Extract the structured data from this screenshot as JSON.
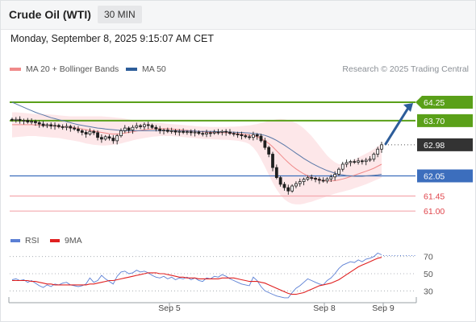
{
  "header": {
    "title": "Crude Oil (WTI)",
    "timeframe": "30 MIN"
  },
  "timestamp": "Monday, September 8, 2025 9:15:07 AM CET",
  "legend": {
    "items": [
      {
        "label": "MA 20 + Bollinger Bands",
        "color": "#f08a8a"
      },
      {
        "label": "MA 50",
        "color": "#2d5d9a"
      }
    ],
    "credit": "Research © 2025 Trading Central"
  },
  "rsi_legend": {
    "items": [
      {
        "label": "RSI",
        "color": "#5b7fd4"
      },
      {
        "label": "9MA",
        "color": "#e02020"
      }
    ]
  },
  "colors": {
    "green": "#5aa019",
    "blue": "#3c6ebd",
    "pink": "#f4a9ae",
    "dark": "#333333",
    "arrow": "#2d5d9a"
  },
  "chart_data": [
    {
      "type": "candlestick",
      "instrument": "Crude Oil (WTI)",
      "interval": "30 MIN",
      "ylim": [
        60.5,
        64.9
      ],
      "x_ticks": [
        "Sep 5",
        "Sep 8",
        "Sep 9"
      ],
      "levels": [
        {
          "value": 64.25,
          "label": "64.25",
          "style": "target",
          "color": "#5aa019"
        },
        {
          "value": 63.7,
          "label": "63.70",
          "style": "resistance",
          "color": "#5aa019"
        },
        {
          "value": 62.98,
          "label": "62.98",
          "style": "last",
          "color": "#333333"
        },
        {
          "value": 62.05,
          "label": "62.05",
          "style": "pivot",
          "color": "#3c6ebd"
        },
        {
          "value": 61.45,
          "label": "61.45",
          "style": "support",
          "color": "#f4a9ae"
        },
        {
          "value": 61.0,
          "label": "61.00",
          "style": "support",
          "color": "#f4a9ae"
        }
      ],
      "close": [
        63.72,
        63.74,
        63.7,
        63.71,
        63.66,
        63.68,
        63.64,
        63.6,
        63.55,
        63.58,
        63.54,
        63.56,
        63.52,
        63.5,
        63.53,
        63.48,
        63.45,
        63.4,
        63.35,
        63.3,
        63.38,
        63.34,
        63.2,
        63.15,
        63.22,
        63.18,
        63.1,
        63.25,
        63.4,
        63.48,
        63.42,
        63.5,
        63.55,
        63.52,
        63.58,
        63.56,
        63.5,
        63.45,
        63.4,
        63.42,
        63.38,
        63.4,
        63.36,
        63.38,
        63.35,
        63.37,
        63.34,
        63.36,
        63.32,
        63.3,
        63.34,
        63.33,
        63.36,
        63.35,
        63.38,
        63.36,
        63.32,
        63.3,
        63.28,
        63.25,
        63.22,
        63.2,
        63.28,
        63.24,
        63.1,
        62.9,
        62.7,
        62.3,
        62.0,
        61.8,
        61.7,
        61.6,
        61.75,
        61.82,
        61.88,
        61.95,
        62.0,
        61.98,
        61.95,
        61.92,
        61.9,
        61.96,
        62.02,
        62.1,
        62.25,
        62.4,
        62.45,
        62.48,
        62.46,
        62.5,
        62.48,
        62.52,
        62.55,
        62.7,
        62.85,
        62.98
      ],
      "open_shift": [
        0.02,
        -0.03,
        0.04,
        -0.01,
        0.05,
        -0.02,
        0.04,
        0.04,
        0.05,
        -0.03,
        0.04,
        -0.02,
        0.04,
        0.02,
        -0.03,
        0.05,
        0.03,
        0.05,
        0.05,
        0.05,
        -0.08,
        0.04,
        0.14,
        0.05,
        -0.07,
        0.04,
        0.08,
        -0.15,
        -0.15,
        -0.08,
        0.06,
        -0.08,
        -0.05,
        0.03,
        -0.06,
        0.02,
        0.06,
        0.05,
        0.05,
        -0.02,
        0.04,
        -0.02,
        0.04,
        -0.02,
        0.03,
        -0.02,
        0.03,
        -0.02,
        0.04,
        0.02,
        -0.04,
        0.01,
        -0.03,
        0.01,
        -0.03,
        0.02,
        0.04,
        0.02,
        0.02,
        0.03,
        0.03,
        0.02,
        -0.08,
        0.04,
        0.14,
        0.2,
        0.2,
        0.4,
        0.3,
        0.2,
        0.1,
        0.1,
        -0.15,
        -0.07,
        -0.06,
        -0.07,
        -0.05,
        0.02,
        0.03,
        0.03,
        0.02,
        -0.06,
        -0.06,
        -0.08,
        -0.15,
        -0.15,
        -0.05,
        -0.03,
        0.02,
        -0.04,
        0.02,
        -0.04,
        -0.03,
        -0.15,
        -0.15,
        -0.13
      ],
      "ma20": [
        63.58,
        63.58,
        63.58,
        63.58,
        63.58,
        63.58,
        63.57,
        63.57,
        63.56,
        63.56,
        63.55,
        63.54,
        63.53,
        63.52,
        63.51,
        63.5,
        63.49,
        63.47,
        63.45,
        63.43,
        63.41,
        63.39,
        63.37,
        63.35,
        63.33,
        63.31,
        63.3,
        63.3,
        63.31,
        63.33,
        63.35,
        63.37,
        63.39,
        63.41,
        63.43,
        63.44,
        63.45,
        63.46,
        63.46,
        63.46,
        63.46,
        63.45,
        63.44,
        63.43,
        63.42,
        63.41,
        63.4,
        63.39,
        63.38,
        63.37,
        63.36,
        63.35,
        63.35,
        63.34,
        63.34,
        63.34,
        63.33,
        63.32,
        63.31,
        63.3,
        63.29,
        63.27,
        63.25,
        63.22,
        63.17,
        63.1,
        63.02,
        62.92,
        62.8,
        62.68,
        62.56,
        62.45,
        62.35,
        62.26,
        62.18,
        62.11,
        62.05,
        62.0,
        61.96,
        61.93,
        61.91,
        61.9,
        61.9,
        61.91,
        61.93,
        61.96,
        61.99,
        62.03,
        62.07,
        62.11,
        62.15,
        62.19,
        62.23,
        62.28,
        62.34,
        62.4
      ],
      "bb_upper": [
        63.95,
        63.95,
        63.94,
        63.93,
        63.92,
        63.91,
        63.9,
        63.9,
        63.9,
        63.89,
        63.88,
        63.87,
        63.86,
        63.85,
        63.84,
        63.83,
        63.83,
        63.83,
        63.83,
        63.83,
        63.83,
        63.83,
        63.83,
        63.83,
        63.82,
        63.81,
        63.8,
        63.79,
        63.78,
        63.76,
        63.74,
        63.72,
        63.7,
        63.68,
        63.67,
        63.66,
        63.65,
        63.64,
        63.63,
        63.62,
        63.61,
        63.6,
        63.59,
        63.58,
        63.57,
        63.56,
        63.55,
        63.54,
        63.53,
        63.52,
        63.52,
        63.51,
        63.51,
        63.51,
        63.51,
        63.51,
        63.52,
        63.52,
        63.53,
        63.54,
        63.55,
        63.56,
        63.58,
        63.6,
        63.63,
        63.66,
        63.69,
        63.72,
        63.74,
        63.75,
        63.74,
        63.72,
        63.68,
        63.63,
        63.56,
        63.47,
        63.36,
        63.24,
        63.1,
        62.95,
        62.8,
        62.66,
        62.55,
        62.46,
        62.4,
        62.4,
        62.43,
        62.48,
        62.54,
        62.6,
        62.66,
        62.72,
        62.78,
        62.85,
        62.93,
        63.01
      ],
      "bb_lower": [
        63.2,
        63.21,
        63.22,
        63.23,
        63.24,
        63.24,
        63.24,
        63.23,
        63.22,
        63.21,
        63.2,
        63.19,
        63.18,
        63.16,
        63.14,
        63.12,
        63.1,
        63.08,
        63.05,
        63.02,
        63.0,
        62.98,
        62.97,
        62.96,
        62.96,
        62.97,
        62.98,
        63.0,
        63.02,
        63.05,
        63.08,
        63.11,
        63.14,
        63.16,
        63.18,
        63.2,
        63.22,
        63.23,
        63.24,
        63.24,
        63.24,
        63.24,
        63.23,
        63.22,
        63.21,
        63.2,
        63.19,
        63.18,
        63.17,
        63.16,
        63.15,
        63.15,
        63.14,
        63.14,
        63.13,
        63.13,
        63.12,
        63.11,
        63.1,
        63.08,
        63.05,
        63.0,
        62.9,
        62.75,
        62.55,
        62.32,
        62.08,
        61.85,
        61.65,
        61.48,
        61.35,
        61.27,
        61.22,
        61.2,
        61.2,
        61.22,
        61.25,
        61.28,
        61.32,
        61.36,
        61.4,
        61.44,
        61.48,
        61.52,
        61.55,
        61.58,
        61.61,
        61.64,
        61.68,
        61.72,
        61.76,
        61.8,
        61.85,
        61.9,
        61.95,
        62.0
      ],
      "ma50": [
        64.25,
        64.2,
        64.15,
        64.1,
        64.05,
        64.0,
        63.95,
        63.91,
        63.87,
        63.83,
        63.79,
        63.76,
        63.73,
        63.7,
        63.67,
        63.64,
        63.61,
        63.58,
        63.56,
        63.54,
        63.52,
        63.5,
        63.48,
        63.47,
        63.45,
        63.44,
        63.43,
        63.42,
        63.41,
        63.4,
        63.4,
        63.4,
        63.4,
        63.4,
        63.4,
        63.4,
        63.4,
        63.4,
        63.4,
        63.4,
        63.4,
        63.4,
        63.4,
        63.39,
        63.39,
        63.39,
        63.39,
        63.39,
        63.38,
        63.38,
        63.38,
        63.38,
        63.38,
        63.37,
        63.37,
        63.37,
        63.36,
        63.36,
        63.35,
        63.35,
        63.34,
        63.33,
        63.32,
        63.31,
        63.29,
        63.26,
        63.22,
        63.17,
        63.11,
        63.04,
        62.97,
        62.89,
        62.81,
        62.73,
        62.65,
        62.57,
        62.5,
        62.43,
        62.37,
        62.31,
        62.26,
        62.21,
        62.17,
        62.13,
        62.1,
        62.08,
        62.06,
        62.05,
        62.04,
        62.04,
        62.04,
        62.05,
        62.06,
        62.07,
        62.08,
        62.1
      ]
    },
    {
      "type": "line",
      "name": "RSI",
      "ylim": [
        20,
        80
      ],
      "y_ticks": [
        70,
        50,
        30
      ],
      "x_ticks": [
        "Sep 5",
        "Sep 8",
        "Sep 9"
      ],
      "series": [
        {
          "name": "RSI",
          "color": "#5b7fd4",
          "values": [
            43,
            44,
            42,
            43,
            40,
            42,
            39,
            36,
            34,
            37,
            35,
            38,
            37,
            39,
            40,
            37,
            36,
            35,
            36,
            38,
            45,
            40,
            42,
            48,
            44,
            41,
            38,
            47,
            52,
            53,
            50,
            51,
            54,
            52,
            53,
            51,
            48,
            46,
            45,
            47,
            44,
            46,
            43,
            45,
            44,
            46,
            43,
            45,
            42,
            41,
            45,
            44,
            47,
            46,
            49,
            47,
            44,
            42,
            40,
            38,
            37,
            36,
            46,
            42,
            35,
            30,
            28,
            26,
            24,
            23,
            22,
            22,
            28,
            33,
            36,
            40,
            44,
            42,
            40,
            38,
            37,
            42,
            45,
            50,
            56,
            60,
            62,
            64,
            63,
            66,
            64,
            67,
            68,
            70,
            74,
            72
          ]
        },
        {
          "name": "9MA",
          "color": "#e02020",
          "values": [
            42,
            42,
            42,
            42,
            42,
            41,
            41,
            40,
            39,
            38,
            38,
            37,
            37,
            37,
            37,
            37,
            37,
            37,
            37,
            37,
            38,
            38,
            39,
            40,
            41,
            42,
            42,
            43,
            44,
            45,
            46,
            47,
            48,
            49,
            50,
            51,
            51,
            51,
            50,
            50,
            49,
            48,
            47,
            46,
            46,
            45,
            45,
            45,
            44,
            44,
            44,
            44,
            44,
            44,
            45,
            45,
            45,
            45,
            44,
            43,
            42,
            41,
            41,
            41,
            40,
            39,
            37,
            35,
            33,
            31,
            29,
            27,
            26,
            26,
            27,
            28,
            30,
            32,
            34,
            36,
            37,
            38,
            39,
            41,
            43,
            46,
            49,
            52,
            55,
            58,
            60,
            62,
            64,
            66,
            68,
            69
          ]
        }
      ]
    }
  ]
}
